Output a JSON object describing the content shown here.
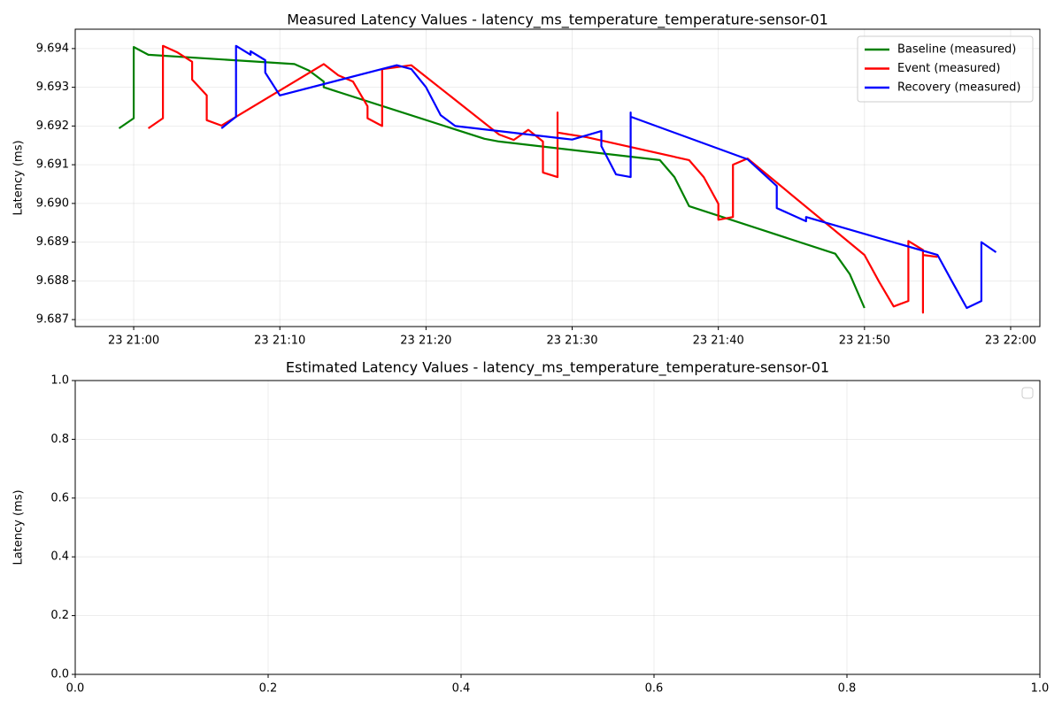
{
  "chart_data": [
    {
      "type": "line",
      "title": "Measured Latency Values - latency_ms_temperature_temperature-sensor-01",
      "y_label": "Latency (ms)",
      "xlim": [
        "23 20:56",
        "23 22:02"
      ],
      "xticks": [
        "23 21:00",
        "23 21:10",
        "23 21:20",
        "23 21:30",
        "23 21:40",
        "23 21:50",
        "23 22:00"
      ],
      "ylim": [
        9.68682,
        9.6945
      ],
      "yticks": [
        9.687,
        9.688,
        9.689,
        {
          "value": 9.69,
          "label": "9.690"
        },
        9.691,
        9.692,
        9.693,
        9.694
      ],
      "grid": true,
      "legend": "upper right",
      "series": [
        {
          "name": "Baseline (measured)",
          "color": "#008000",
          "x": [
            "23 20:59",
            "23 21:00",
            "23 21:00",
            "23 21:01",
            "23 21:11",
            "23 21:12",
            "23 21:13",
            "23 21:13",
            "23 21:24",
            "23 21:25",
            "23 21:36",
            "23 21:37",
            "23 21:38",
            "23 21:48",
            "23 21:49",
            "23 21:50"
          ],
          "values": [
            9.69194,
            9.6922,
            9.69404,
            9.69384,
            9.6936,
            9.69343,
            9.69315,
            9.693,
            9.69167,
            9.6916,
            9.69112,
            9.69068,
            9.68993,
            9.6887,
            9.68817,
            9.6873
          ]
        },
        {
          "name": "Event (measured)",
          "color": "#ff0000",
          "x": [
            "23 21:01",
            "23 21:02",
            "23 21:02",
            "23 21:03",
            "23 21:04",
            "23 21:04",
            "23 21:05",
            "23 21:05",
            "23 21:06",
            "23 21:13",
            "23 21:14",
            "23 21:15",
            "23 21:16",
            "23 21:16",
            "23 21:17",
            "23 21:17",
            "23 21:19",
            "23 21:25",
            "23 21:26",
            "23 21:27",
            "23 21:28",
            "23 21:28",
            "23 21:29",
            "23 21:29",
            "23 21:29",
            "23 21:31",
            "23 21:38",
            "23 21:39",
            "23 21:40",
            "23 21:40",
            "23 21:41",
            "23 21:41",
            "23 21:42",
            "23 21:50",
            "23 21:51",
            "23 21:52",
            "23 21:53",
            "23 21:53",
            "23 21:54",
            "23 21:54",
            "23 21:54",
            "23 21:54",
            "23 21:55"
          ],
          "values": [
            9.69194,
            9.6922,
            9.69407,
            9.6939,
            9.69366,
            9.6932,
            9.69279,
            9.69215,
            9.69201,
            9.6936,
            9.69331,
            9.69315,
            9.69251,
            9.6922,
            9.692,
            9.69347,
            9.69357,
            9.69178,
            9.69164,
            9.6919,
            9.6916,
            9.6908,
            9.69068,
            9.69235,
            9.69183,
            9.69171,
            9.69112,
            9.69068,
            9.68999,
            9.68958,
            9.68965,
            9.691,
            9.69116,
            9.68867,
            9.68798,
            9.68734,
            9.68748,
            9.68903,
            9.6888,
            9.68718,
            9.6873,
            9.68867,
            9.68862
          ]
        },
        {
          "name": "Recovery (measured)",
          "color": "#0000ff",
          "x": [
            "23 21:06",
            "23 21:07",
            "23 21:07",
            "23 21:08",
            "23 21:08",
            "23 21:09",
            "23 21:09",
            "23 21:10",
            "23 21:18",
            "23 21:19",
            "23 21:20",
            "23 21:21",
            "23 21:22",
            "23 21:30",
            "23 21:32",
            "23 21:32",
            "23 21:33",
            "23 21:34",
            "23 21:34",
            "23 21:34",
            "23 21:42",
            "23 21:44",
            "23 21:44",
            "23 21:46",
            "23 21:46",
            "23 21:55",
            "23 21:56",
            "23 21:57",
            "23 21:58",
            "23 21:58",
            "23 21:59"
          ],
          "values": [
            9.69194,
            9.69224,
            9.69407,
            9.69384,
            9.69393,
            9.6937,
            9.69338,
            9.69279,
            9.69357,
            9.69347,
            9.693,
            9.69228,
            9.692,
            9.69165,
            9.69187,
            9.69148,
            9.69075,
            9.69068,
            9.69235,
            9.69224,
            9.69114,
            9.69045,
            9.68988,
            9.68954,
            9.68965,
            9.68867,
            9.68798,
            9.6873,
            9.68748,
            9.689,
            9.68874
          ]
        }
      ]
    },
    {
      "type": "line",
      "title": "Estimated Latency Values - latency_ms_temperature_temperature-sensor-01",
      "y_label": "Latency (ms)",
      "xlim": [
        0,
        1
      ],
      "xticks": [
        {
          "value": 0,
          "label": "0.0"
        },
        {
          "value": 0.2,
          "label": "0.2"
        },
        {
          "value": 0.4,
          "label": "0.4"
        },
        {
          "value": 0.6,
          "label": "0.6"
        },
        {
          "value": 0.8,
          "label": "0.8"
        },
        {
          "value": 1,
          "label": "1.0"
        }
      ],
      "ylim": [
        0,
        1
      ],
      "yticks": [
        {
          "value": 0,
          "label": "0.0"
        },
        {
          "value": 0.2,
          "label": "0.2"
        },
        {
          "value": 0.4,
          "label": "0.4"
        },
        {
          "value": 0.6,
          "label": "0.6"
        },
        {
          "value": 0.8,
          "label": "0.8"
        },
        {
          "value": 1,
          "label": "1.0"
        }
      ],
      "grid": true,
      "legend": "upper right",
      "series": []
    }
  ]
}
